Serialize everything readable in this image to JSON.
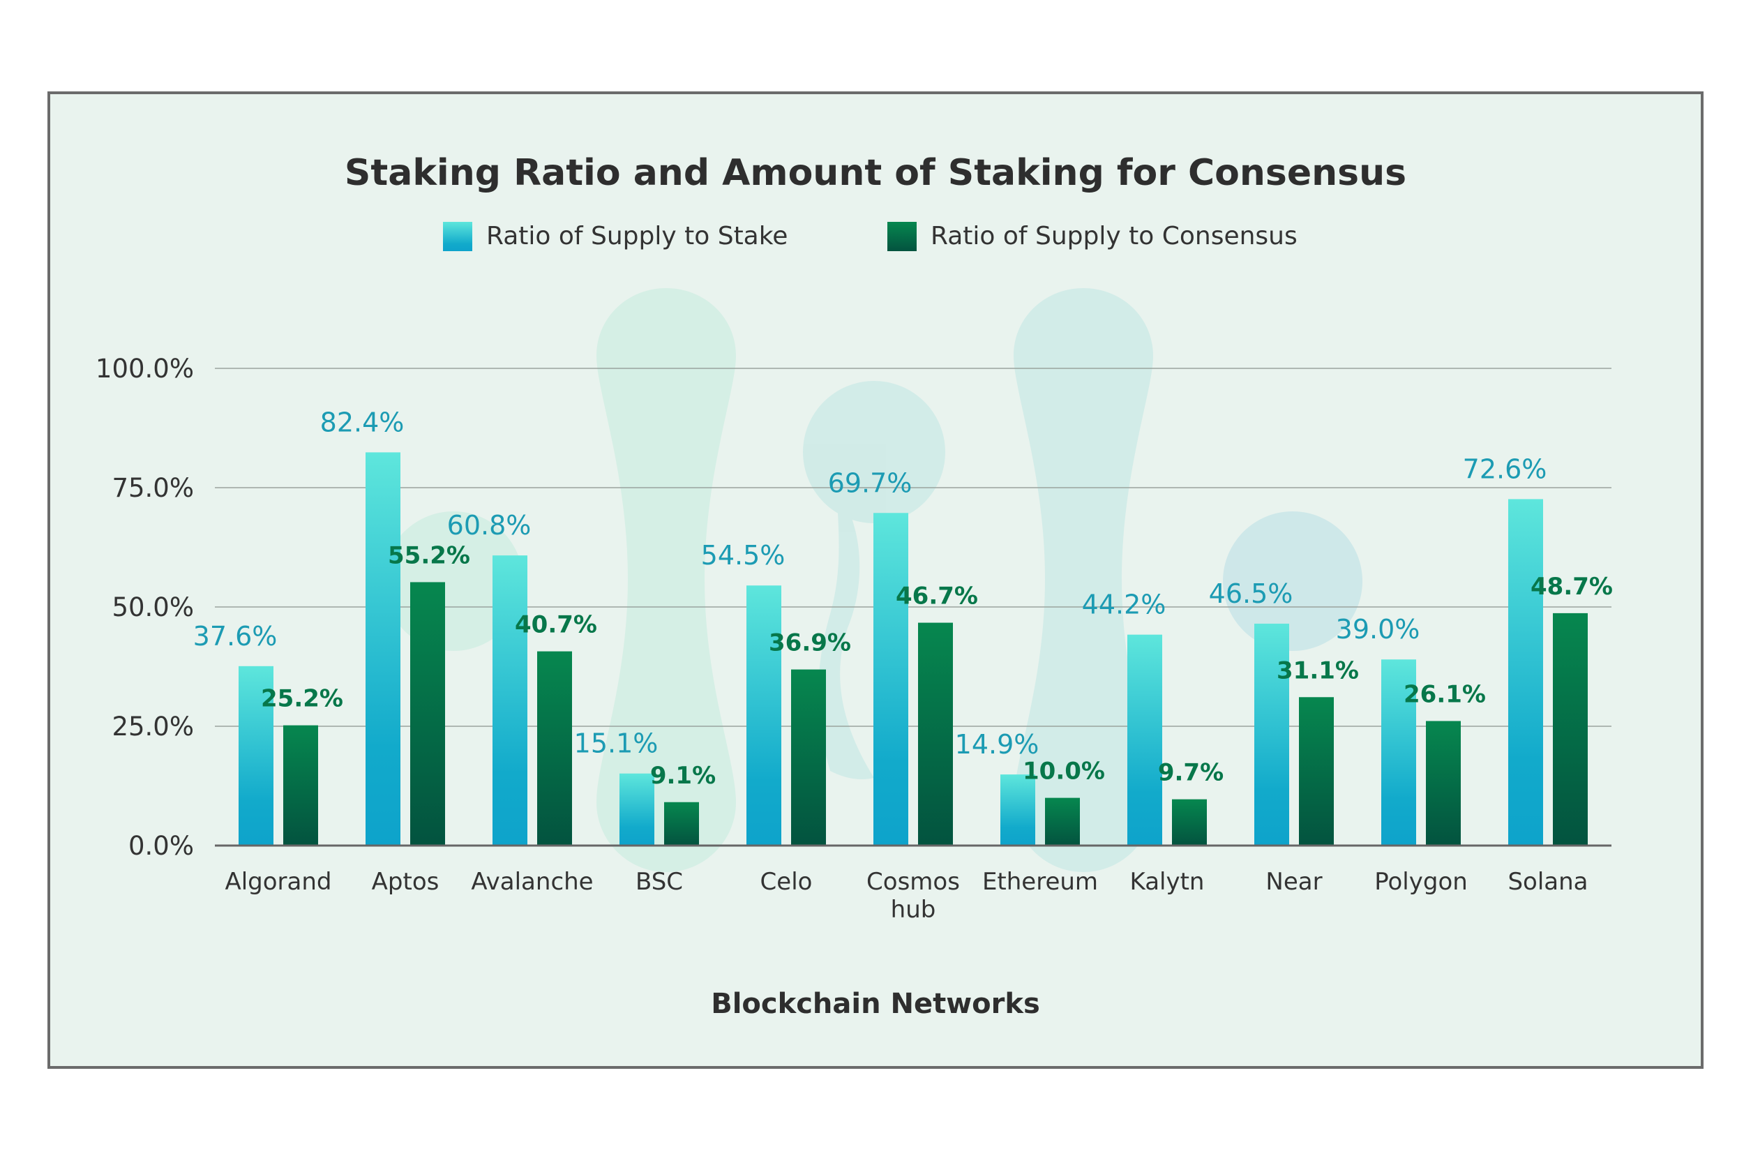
{
  "chart_data": {
    "type": "bar",
    "title": "Staking Ratio and Amount of Staking for Consensus",
    "xlabel": "Blockchain Networks",
    "ylabel": "",
    "ylim": [
      0,
      100
    ],
    "yticks": [
      "0.0%",
      "25.0%",
      "50.0%",
      "75.0%",
      "100.0%"
    ],
    "ytick_values": [
      0,
      25,
      50,
      75,
      100
    ],
    "grid": true,
    "legend_position": "top",
    "categories": [
      [
        "Algorand"
      ],
      [
        "Aptos"
      ],
      [
        "Avalanche"
      ],
      [
        "BSC"
      ],
      [
        "Celo"
      ],
      [
        "Cosmos",
        "hub"
      ],
      [
        "Ethereum"
      ],
      [
        "Kalytn"
      ],
      [
        "Near"
      ],
      [
        "Polygon"
      ],
      [
        "Solana"
      ]
    ],
    "series": [
      {
        "name": "Ratio of Supply to Stake",
        "color": "#12aacb",
        "color_top": "#5ee6dc",
        "label_color": "#1c9bb3",
        "values": [
          37.6,
          82.4,
          60.8,
          15.1,
          54.5,
          69.7,
          14.9,
          44.2,
          46.5,
          39.0,
          72.6
        ],
        "labels": [
          "37.6%",
          "82.4%",
          "60.8%",
          "15.1%",
          "54.5%",
          "69.7%",
          "14.9%",
          "44.2%",
          "46.5%",
          "39.0%",
          "72.6%"
        ]
      },
      {
        "name": "Ratio of Supply to Consensus",
        "color": "#03533f",
        "color_top": "#06874f",
        "label_color": "#07774a",
        "values": [
          25.2,
          55.2,
          40.7,
          9.1,
          36.9,
          46.7,
          10.0,
          9.7,
          31.1,
          26.1,
          48.7
        ],
        "labels": [
          "25.2%",
          "55.2%",
          "40.7%",
          "9.1%",
          "36.9%",
          "46.7%",
          "10.0%",
          "9.7%",
          "31.1%",
          "26.1%",
          "48.7%"
        ]
      }
    ]
  },
  "colors": {
    "panel_background": "#e9f3ee",
    "panel_border": "#6b6b6b",
    "grid": "#9aa39e",
    "decor_bubble": "#c9ece3"
  }
}
